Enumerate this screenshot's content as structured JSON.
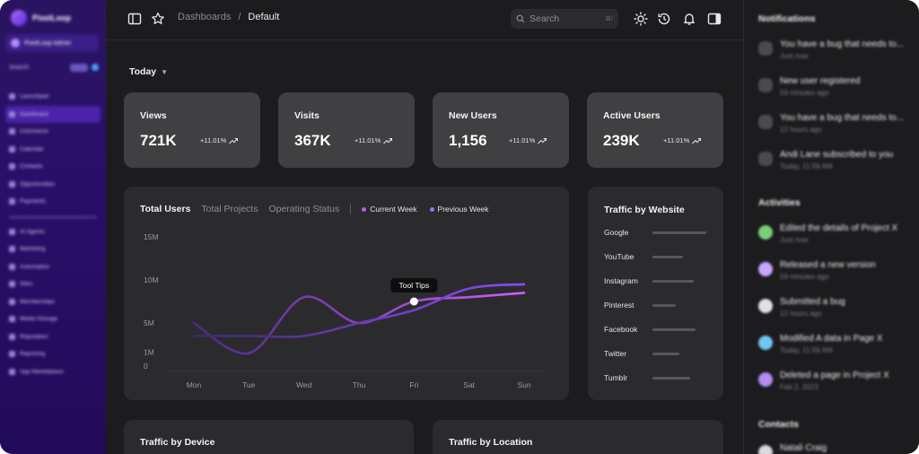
{
  "sidebar": {
    "brand": "PixelLoop",
    "user": "PixelLoop Admin",
    "search": "Search",
    "items": [
      "Launchpad",
      "Dashboard",
      "Commerce",
      "Calendar",
      "Contacts",
      "Opportunities",
      "Payments",
      "AI Agents",
      "Marketing",
      "Automation",
      "Sites",
      "Memberships",
      "Media Storage",
      "Reputation",
      "Reporting",
      "App Marketplace"
    ]
  },
  "topbar": {
    "breadcrumb_parent": "Dashboards",
    "breadcrumb_sep": "/",
    "breadcrumb_current": "Default",
    "search_placeholder": "Search",
    "search_shortcut": "⌘/"
  },
  "main": {
    "period": "Today",
    "stats": [
      {
        "label": "Views",
        "value": "721K",
        "change": "+11.01%"
      },
      {
        "label": "Visits",
        "value": "367K",
        "change": "+11.01%"
      },
      {
        "label": "New Users",
        "value": "1,156",
        "change": "+11.01%"
      },
      {
        "label": "Active Users",
        "value": "239K",
        "change": "+11.01%"
      }
    ],
    "chart_tabs": [
      "Total Users",
      "Total Projects",
      "Operating Status"
    ],
    "legend": [
      "Current Week",
      "Previous Week"
    ],
    "tooltip": "Tool Tips",
    "traffic_website": {
      "title": "Traffic by Website",
      "sites": [
        "Google",
        "YouTube",
        "Instagram",
        "Pinterest",
        "Facebook",
        "Twitter",
        "Tumblr"
      ]
    },
    "bottom_cards": [
      "Traffic by Device",
      "Traffic by Location"
    ]
  },
  "chart_data": {
    "type": "line",
    "x": [
      "Mon",
      "Tue",
      "Wed",
      "Thu",
      "Fri",
      "Sat",
      "Sun"
    ],
    "yticks": [
      "15M",
      "10M",
      "5M",
      "1M",
      "0"
    ],
    "series": [
      {
        "name": "Current Week",
        "color": "#c455f7",
        "values": [
          5,
          1.5,
          8,
          5,
          7.5,
          8,
          8.5
        ]
      },
      {
        "name": "Previous Week",
        "color": "#7a3fd6",
        "values": [
          3.5,
          3.5,
          3.5,
          5,
          6.5,
          9,
          9.5
        ]
      }
    ],
    "tooltip_point": {
      "x": "Fri",
      "y": 7.5
    }
  },
  "right_panel": {
    "notifications_title": "Notifications",
    "notifications": [
      {
        "text": "You have a bug that needs to...",
        "time": "Just now"
      },
      {
        "text": "New user registered",
        "time": "59 minutes ago"
      },
      {
        "text": "You have a bug that needs to...",
        "time": "12 hours ago"
      },
      {
        "text": "Andi Lane subscribed to you",
        "time": "Today, 11:59 AM"
      }
    ],
    "activities_title": "Activities",
    "activities": [
      {
        "text": "Edited the details of Project X",
        "time": "Just now"
      },
      {
        "text": "Released a new version",
        "time": "59 minutes ago"
      },
      {
        "text": "Submitted a bug",
        "time": "12 hours ago"
      },
      {
        "text": "Modified A data in Page X",
        "time": "Today, 11:59 AM"
      },
      {
        "text": "Deleted a page in Project X",
        "time": "Feb 2, 2023"
      }
    ],
    "contacts_title": "Contacts",
    "contact_first": "Natali Craig"
  }
}
